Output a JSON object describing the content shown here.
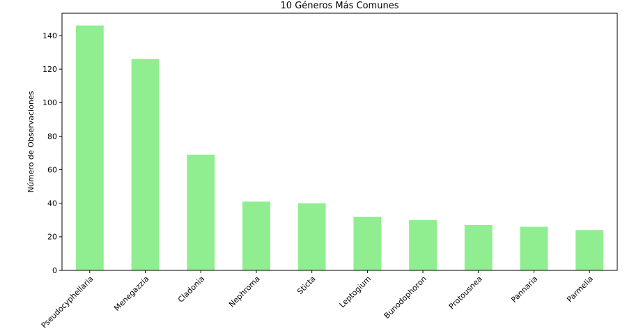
{
  "chart_data": {
    "type": "bar",
    "title": "10 Géneros Más Comunes",
    "xlabel": "",
    "ylabel": "Número de Observaciones",
    "categories": [
      "Pseudocyphellaria",
      "Menegazzia",
      "Cladonia",
      "Nephroma",
      "Sticta",
      "Leptogium",
      "Bunodophoron",
      "Protousnea",
      "Pannaria",
      "Parmelia"
    ],
    "values": [
      146,
      126,
      69,
      41,
      40,
      32,
      30,
      27,
      26,
      24
    ],
    "ylim": [
      0,
      153.3
    ],
    "yticks": [
      0,
      20,
      40,
      60,
      80,
      100,
      120,
      140
    ],
    "bar_color": "#90ee90",
    "grid": false,
    "legend": "none"
  }
}
